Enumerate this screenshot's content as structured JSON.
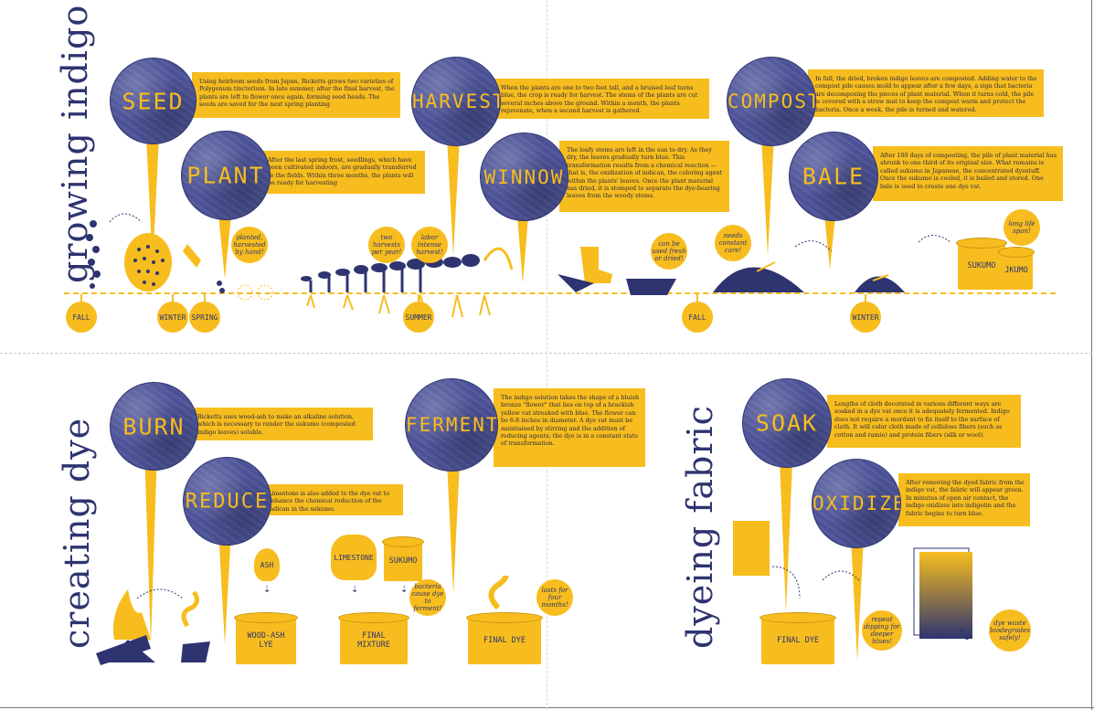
{
  "sections": {
    "growing": "growing indigo",
    "creating": "creating dye",
    "dyeing": "dyeing fabric"
  },
  "steps": {
    "seed": {
      "label": "SEED",
      "text": "Using heirloom seeds from Japan, Ricketts grows two varieties of Polygonum tinctorium. In late summer, after the final harvest, the plants are left to flower once again, forming seed heads. The seeds are saved for the next spring planting"
    },
    "plant": {
      "label": "PLANT",
      "text": "After the last spring frost, seedlings, which have been cultivated indoors, are gradually transferred to the fields. Within three months, the plants will be ready for harvesting"
    },
    "harvest": {
      "label": "HARVEST",
      "text": "When the plants are one to two feet tall, and a bruised leaf turns blue, the crop is ready for harvest. The stems of the plants are cut several inches above the ground. Within a month, the plants rejuvenate, when a second harvest is gathered."
    },
    "winnow": {
      "label": "WINNOW",
      "text": "The leafy stems are left in the sun to dry. As they dry, the leaves gradually turn blue. This transformation results from a chemical reaction — that is, the oxidization of indican, the coloring agent within the plants' leaves. Once the plant material has dried, it is stomped to separate the dye-bearing leaves from the woody stems."
    },
    "compost": {
      "label": "COMPOST",
      "text": "In fall, the dried, broken indigo leaves are composted. Adding water to the compost pile causes mold to appear after a few days, a sign that bacteria are decomposing the pieces of plant material. When it turns cold, the pile is covered with a straw mat to keep the compost warm and protect the bacteria. Once a week, the pile is turned and watered."
    },
    "bale": {
      "label": "BALE",
      "text": "After 100 days of composting, the pile of plant material has shrunk to one third of its original size. What remains is called sukumo in Japanese, the concentrated dyestuff. Once the sukumo is cooled, it is bailed and stored. One bale is used to create one dye vat."
    },
    "burn": {
      "label": "BURN",
      "text": "Ricketts uses wood-ash to make an alkaline solution, which is necessary to render the sukumo (composted indigo leaves) soluble."
    },
    "reduce": {
      "label": "REDUCE",
      "text": "Limestone is also added to the dye vat to enhance the chemical reduction of the indican in the sukumo."
    },
    "ferment": {
      "label": "FERMENT",
      "text": "The indigo solution takes the shape of a bluish bronze \"flower\" that lies on top of a brackish yellow vat streaked with blue. The flower can be 6-8 inches in diameter. A dye vat must be maintained by stirring and the addition of reducing agents; the dye is in a constant state of transformation."
    },
    "soak": {
      "label": "SOAK",
      "text": "Lengths of cloth decorated in various different ways are soaked in a dye vat once it is adequately fermented. Indigo does not require a mordant to fix itself to the surface of cloth. It will color cloth made of cellulose fibers (such as cotton and ramie) and protein fibers (silk or wool)."
    },
    "oxidize": {
      "label": "OXIDIZE",
      "text": "After removing the dyed fabric from the indigo vat, the fabric will appear green. In minutes of open air contact, the indigo oxidizes into indigotin and the fabric begins to turn blue."
    }
  },
  "seasons": [
    "FALL",
    "WINTER",
    "SPRING",
    "SUMMER",
    "FALL",
    "WINTER"
  ],
  "notes": {
    "planted": "planted, harvested by hand!",
    "two_harvests": "two harvests per year!",
    "labor": "labor intense harvest!",
    "seed_fresh": "can be used fresh or dried!",
    "constant_care": "needs constant care!",
    "life_span": "long life span!",
    "bacteria": "bacteria cause dye to ferment!",
    "lasts": "lasts for four months!",
    "repeat": "repeat dipping for deeper blues!",
    "waste": "dye waste biodegrades safely!"
  },
  "objects": {
    "sukumo1": "SUKUMO",
    "sukumo2": "JKUMO",
    "ash": "ASH",
    "limestone": "LIMESTONE",
    "sukumo_bag": "SUKUMO",
    "woodash_vat": "WOOD-ASH LYE",
    "final_mixture": "FINAL MIXTURE",
    "final_dye": "FINAL DYE",
    "final_dye2": "FINAL DYE"
  },
  "colors": {
    "navy": "#2e3470",
    "gold": "#f7bd1e"
  }
}
